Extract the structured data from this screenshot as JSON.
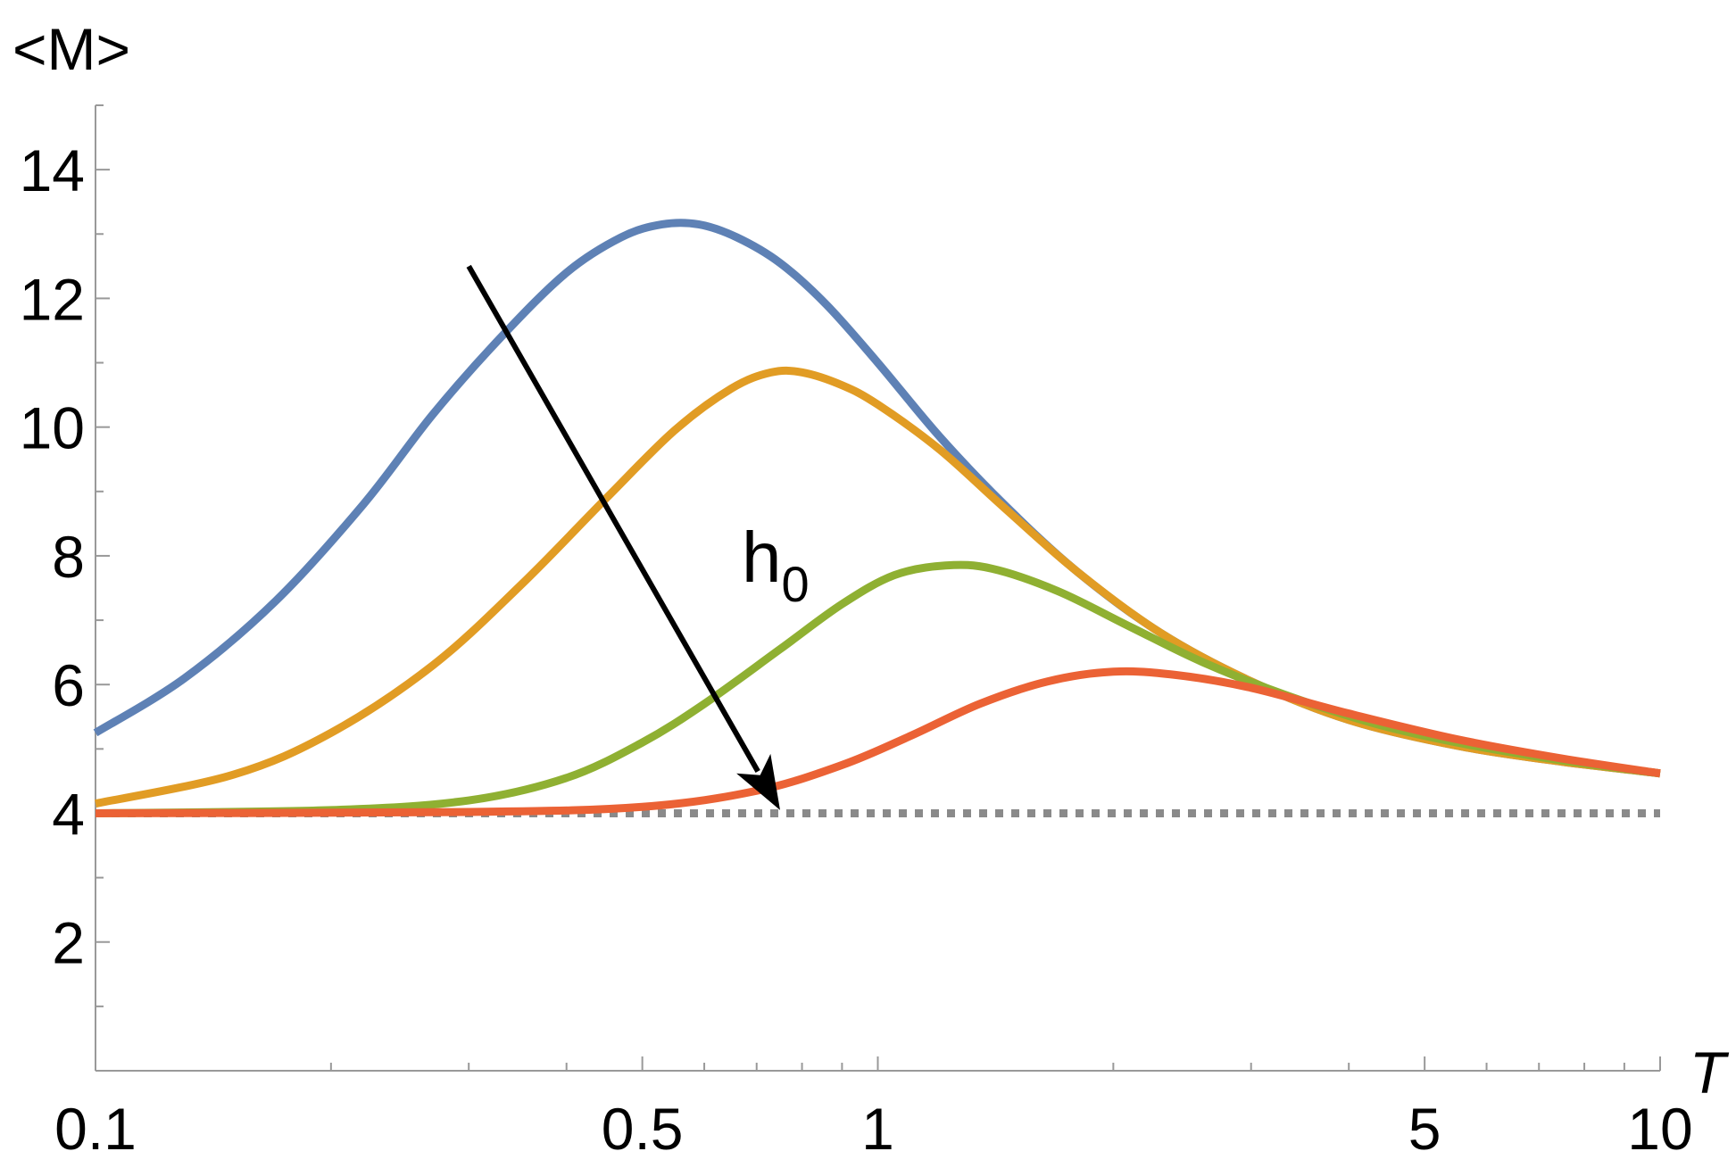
{
  "chart_data": {
    "type": "line",
    "xscale": "log",
    "xlim": [
      0.1,
      10
    ],
    "ylim": [
      0,
      15
    ],
    "xlabel": "T",
    "ylabel": "<M>",
    "x_ticks": [
      {
        "value": 0.1,
        "label": "0.1"
      },
      {
        "value": 0.5,
        "label": "0.5"
      },
      {
        "value": 1,
        "label": "1"
      },
      {
        "value": 5,
        "label": "5"
      },
      {
        "value": 10,
        "label": "10"
      }
    ],
    "x_minor_ticks": [
      0.2,
      0.3,
      0.4,
      0.6,
      0.7,
      0.8,
      0.9,
      2,
      3,
      4,
      6,
      7,
      8,
      9
    ],
    "y_ticks": [
      {
        "value": 2,
        "label": "2"
      },
      {
        "value": 4,
        "label": "4"
      },
      {
        "value": 6,
        "label": "6"
      },
      {
        "value": 8,
        "label": "8"
      },
      {
        "value": 10,
        "label": "10"
      },
      {
        "value": 12,
        "label": "12"
      },
      {
        "value": 14,
        "label": "14"
      }
    ],
    "y_minor_ticks": [
      1,
      3,
      5,
      7,
      9,
      11,
      13,
      15
    ],
    "series": [
      {
        "color": "#5e81b5",
        "style": "solid",
        "points": [
          [
            0.1,
            5.25
          ],
          [
            0.13,
            6.1
          ],
          [
            0.17,
            7.3
          ],
          [
            0.22,
            8.8
          ],
          [
            0.27,
            10.2
          ],
          [
            0.33,
            11.4
          ],
          [
            0.4,
            12.4
          ],
          [
            0.47,
            12.95
          ],
          [
            0.53,
            13.15
          ],
          [
            0.59,
            13.15
          ],
          [
            0.66,
            12.95
          ],
          [
            0.75,
            12.55
          ],
          [
            0.86,
            11.9
          ],
          [
            1.0,
            11.0
          ],
          [
            1.2,
            9.85
          ],
          [
            1.45,
            8.8
          ],
          [
            1.8,
            7.75
          ],
          [
            2.3,
            6.8
          ],
          [
            3.0,
            6.05
          ],
          [
            4.0,
            5.45
          ],
          [
            5.5,
            5.05
          ],
          [
            7.5,
            4.8
          ],
          [
            10,
            4.62
          ]
        ]
      },
      {
        "color": "#e19c24",
        "style": "solid",
        "points": [
          [
            0.1,
            4.15
          ],
          [
            0.15,
            4.6
          ],
          [
            0.2,
            5.25
          ],
          [
            0.27,
            6.3
          ],
          [
            0.35,
            7.55
          ],
          [
            0.45,
            8.9
          ],
          [
            0.55,
            9.95
          ],
          [
            0.65,
            10.6
          ],
          [
            0.73,
            10.85
          ],
          [
            0.8,
            10.85
          ],
          [
            0.9,
            10.65
          ],
          [
            1.0,
            10.35
          ],
          [
            1.2,
            9.65
          ],
          [
            1.45,
            8.75
          ],
          [
            1.8,
            7.75
          ],
          [
            2.3,
            6.8
          ],
          [
            3.0,
            6.05
          ],
          [
            4.0,
            5.45
          ],
          [
            5.5,
            5.05
          ],
          [
            7.5,
            4.8
          ],
          [
            10,
            4.62
          ]
        ]
      },
      {
        "color": "#8fb032",
        "style": "solid",
        "points": [
          [
            0.1,
            4.0
          ],
          [
            0.2,
            4.05
          ],
          [
            0.3,
            4.2
          ],
          [
            0.4,
            4.55
          ],
          [
            0.5,
            5.1
          ],
          [
            0.6,
            5.7
          ],
          [
            0.75,
            6.55
          ],
          [
            0.9,
            7.25
          ],
          [
            1.05,
            7.7
          ],
          [
            1.22,
            7.85
          ],
          [
            1.4,
            7.8
          ],
          [
            1.7,
            7.45
          ],
          [
            2.1,
            6.9
          ],
          [
            2.6,
            6.35
          ],
          [
            3.3,
            5.85
          ],
          [
            4.3,
            5.4
          ],
          [
            5.5,
            5.1
          ],
          [
            7.5,
            4.82
          ],
          [
            10,
            4.62
          ]
        ]
      },
      {
        "color": "#eb6235",
        "style": "solid",
        "points": [
          [
            0.1,
            4.0
          ],
          [
            0.3,
            4.02
          ],
          [
            0.5,
            4.1
          ],
          [
            0.7,
            4.35
          ],
          [
            0.9,
            4.75
          ],
          [
            1.1,
            5.2
          ],
          [
            1.35,
            5.7
          ],
          [
            1.65,
            6.05
          ],
          [
            2.0,
            6.2
          ],
          [
            2.4,
            6.15
          ],
          [
            3.0,
            5.95
          ],
          [
            4.0,
            5.55
          ],
          [
            5.5,
            5.15
          ],
          [
            7.5,
            4.85
          ],
          [
            10,
            4.62
          ]
        ]
      },
      {
        "color": "#8a8a8a",
        "style": "dotted",
        "points": [
          [
            0.1,
            4.0
          ],
          [
            10,
            4.0
          ]
        ]
      }
    ],
    "annotations": [
      {
        "type": "arrow",
        "from": [
          0.3,
          12.5
        ],
        "to": [
          0.75,
          4.05
        ],
        "color": "#000000"
      },
      {
        "type": "text",
        "main": "h",
        "subscript": "0",
        "at": [
          0.67,
          7.6
        ]
      }
    ]
  }
}
